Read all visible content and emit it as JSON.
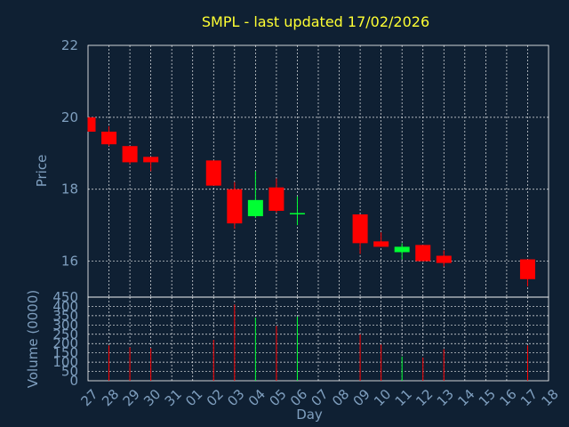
{
  "chart_data": {
    "type": "candlestick",
    "title": "SMPL - last updated 17/02/2026",
    "xlabel": "Day",
    "x_ticks": [
      "27",
      "28",
      "29",
      "30",
      "31",
      "01",
      "02",
      "03",
      "04",
      "05",
      "06",
      "07",
      "08",
      "09",
      "10",
      "11",
      "12",
      "13",
      "14",
      "15",
      "16",
      "17",
      "18"
    ],
    "price_panel": {
      "ylabel": "Price",
      "ylim": [
        15,
        22
      ],
      "y_ticks": [
        16,
        18,
        20,
        22
      ],
      "grid": true
    },
    "volume_panel": {
      "ylabel": "Volume (0000)",
      "ylim": [
        0,
        450
      ],
      "y_ticks": [
        0,
        50,
        100,
        150,
        200,
        250,
        300,
        350,
        400,
        450
      ],
      "grid": true
    },
    "colors": {
      "up": "#00ff33",
      "down": "#ff0000",
      "background": "#0f2033",
      "grid": "#ffffff",
      "title": "#ffff33",
      "label": "#7f9fbf"
    },
    "candles": [
      {
        "day": "27",
        "open": 20.0,
        "high": 20.0,
        "low": 19.6,
        "close": 19.6
      },
      {
        "day": "28",
        "open": 19.6,
        "high": 19.75,
        "low": 19.2,
        "close": 19.25
      },
      {
        "day": "29",
        "open": 19.2,
        "high": 19.2,
        "low": 18.7,
        "close": 18.75
      },
      {
        "day": "30",
        "open": 18.9,
        "high": 18.9,
        "low": 18.5,
        "close": 18.75
      },
      {
        "day": "02",
        "open": 18.8,
        "high": 18.8,
        "low": 18.1,
        "close": 18.1
      },
      {
        "day": "03",
        "open": 18.0,
        "high": 18.2,
        "low": 16.9,
        "close": 17.05
      },
      {
        "day": "04",
        "open": 17.25,
        "high": 18.5,
        "low": 17.2,
        "close": 17.7
      },
      {
        "day": "05",
        "open": 18.05,
        "high": 18.3,
        "low": 17.35,
        "close": 17.4
      },
      {
        "day": "06",
        "open": 17.3,
        "high": 17.8,
        "low": 17.0,
        "close": 17.32
      },
      {
        "day": "09",
        "open": 17.3,
        "high": 17.3,
        "low": 16.2,
        "close": 16.5
      },
      {
        "day": "10",
        "open": 16.55,
        "high": 16.8,
        "low": 16.4,
        "close": 16.4
      },
      {
        "day": "11",
        "open": 16.25,
        "high": 16.5,
        "low": 16.05,
        "close": 16.4
      },
      {
        "day": "12",
        "open": 16.45,
        "high": 16.45,
        "low": 16.0,
        "close": 16.0
      },
      {
        "day": "13",
        "open": 16.15,
        "high": 16.3,
        "low": 15.85,
        "close": 15.95
      },
      {
        "day": "17",
        "open": 16.05,
        "high": 16.05,
        "low": 15.3,
        "close": 15.5
      }
    ],
    "volume": [
      {
        "day": "27",
        "value": 0
      },
      {
        "day": "28",
        "value": 190
      },
      {
        "day": "29",
        "value": 180
      },
      {
        "day": "30",
        "value": 175
      },
      {
        "day": "02",
        "value": 220
      },
      {
        "day": "03",
        "value": 410
      },
      {
        "day": "04",
        "value": 340
      },
      {
        "day": "05",
        "value": 295
      },
      {
        "day": "06",
        "value": 345
      },
      {
        "day": "09",
        "value": 250
      },
      {
        "day": "10",
        "value": 195
      },
      {
        "day": "11",
        "value": 130
      },
      {
        "day": "12",
        "value": 125
      },
      {
        "day": "13",
        "value": 170
      },
      {
        "day": "17",
        "value": 190
      }
    ]
  }
}
